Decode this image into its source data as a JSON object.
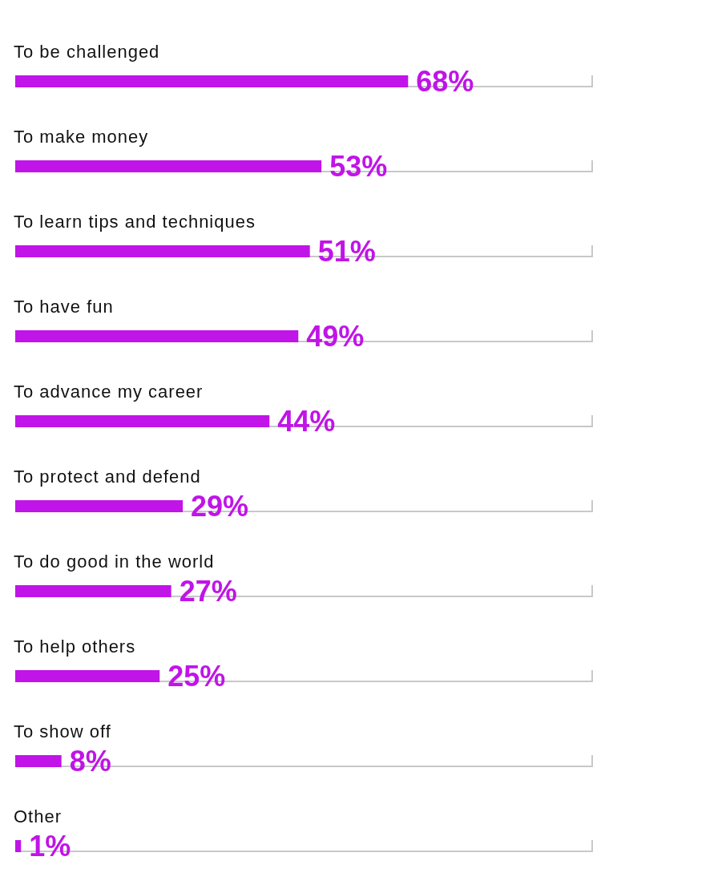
{
  "chart_data": {
    "type": "bar",
    "orientation": "horizontal",
    "categories": [
      "To be challenged",
      "To make money",
      "To learn tips and techniques",
      "To have fun",
      "To advance my career",
      "To protect and defend",
      "To do good in the world",
      "To help others",
      "To show off",
      "Other"
    ],
    "values": [
      68,
      53,
      51,
      49,
      44,
      29,
      27,
      25,
      8,
      1
    ],
    "value_labels": [
      "68%",
      "53%",
      "51%",
      "49%",
      "44%",
      "29%",
      "27%",
      "25%",
      "8%",
      "1%"
    ],
    "color": "#c014e8",
    "xlim": [
      0,
      100
    ],
    "tick_labels": false,
    "grid": false,
    "legend": false
  }
}
